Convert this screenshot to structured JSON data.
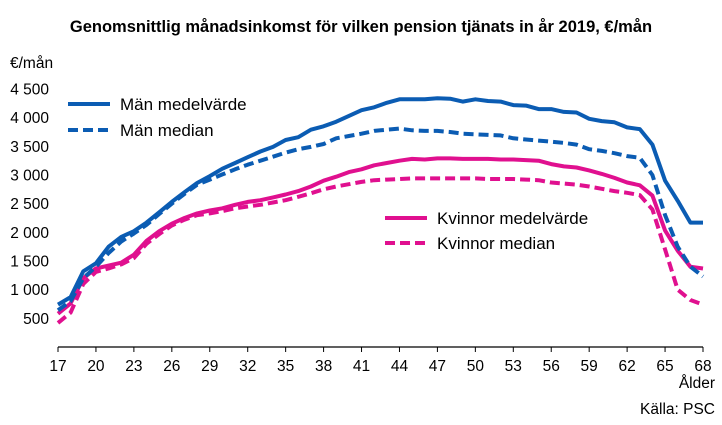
{
  "chart_data": {
    "type": "line",
    "title": "Genomsnittlig månadsinkomst för vilken pension tjänats in år 2019, €/mån",
    "ylabel": "€/mån",
    "xlabel": "Ålder",
    "source": "Källa: PSC",
    "ylim": [
      0,
      4500
    ],
    "xlim": [
      17,
      68
    ],
    "y_ticks": [
      500,
      1000,
      1500,
      2000,
      2500,
      3000,
      3500,
      4000,
      4500
    ],
    "y_tick_labels": [
      "500",
      "1 000",
      "1 500",
      "2 000",
      "2 500",
      "3 000",
      "3 500",
      "4 000",
      "4 500"
    ],
    "x_ticks": [
      17,
      20,
      23,
      26,
      29,
      32,
      35,
      38,
      41,
      44,
      47,
      50,
      53,
      56,
      59,
      62,
      65,
      68
    ],
    "x_tick_labels": [
      "17",
      "20",
      "23",
      "26",
      "29",
      "32",
      "35",
      "38",
      "41",
      "44",
      "47",
      "50",
      "53",
      "56",
      "59",
      "62",
      "65",
      "68"
    ],
    "grid": false,
    "legend_upper": "top-left",
    "legend_lower": "right",
    "colors": {
      "men": "#0b5cb3",
      "women": "#e0108f"
    },
    "x": [
      17,
      18,
      19,
      20,
      21,
      22,
      23,
      24,
      25,
      26,
      27,
      28,
      29,
      30,
      31,
      32,
      33,
      34,
      35,
      36,
      37,
      38,
      39,
      40,
      41,
      42,
      43,
      44,
      45,
      46,
      47,
      48,
      49,
      50,
      51,
      52,
      53,
      54,
      55,
      56,
      57,
      58,
      59,
      60,
      61,
      62,
      63,
      64,
      65,
      66,
      67,
      68
    ],
    "series": [
      {
        "name": "Män medelvärde",
        "color": "#0b5cb3",
        "dash": false,
        "values": [
          740,
          870,
          1320,
          1460,
          1750,
          1920,
          2020,
          2170,
          2350,
          2530,
          2700,
          2860,
          2980,
          3110,
          3210,
          3310,
          3410,
          3490,
          3610,
          3660,
          3790,
          3850,
          3930,
          4030,
          4130,
          4180,
          4260,
          4320,
          4320,
          4320,
          4340,
          4330,
          4280,
          4320,
          4290,
          4280,
          4220,
          4210,
          4150,
          4150,
          4100,
          4090,
          3980,
          3940,
          3920,
          3830,
          3800,
          3530,
          2900,
          2550,
          2170,
          2170
        ]
      },
      {
        "name": "Män median",
        "color": "#0b5cb3",
        "dash": true,
        "values": [
          640,
          800,
          1200,
          1400,
          1640,
          1840,
          1980,
          2130,
          2320,
          2500,
          2670,
          2830,
          2920,
          3010,
          3100,
          3180,
          3250,
          3320,
          3390,
          3450,
          3490,
          3540,
          3640,
          3680,
          3720,
          3770,
          3790,
          3810,
          3780,
          3770,
          3770,
          3750,
          3720,
          3710,
          3700,
          3690,
          3640,
          3620,
          3600,
          3580,
          3560,
          3530,
          3450,
          3420,
          3380,
          3330,
          3300,
          3000,
          2300,
          1750,
          1400,
          1230
        ]
      },
      {
        "name": "Kvinnor medelvärde",
        "color": "#e0108f",
        "dash": false,
        "values": [
          580,
          760,
          1200,
          1370,
          1420,
          1470,
          1610,
          1850,
          2020,
          2150,
          2250,
          2330,
          2380,
          2420,
          2480,
          2530,
          2560,
          2610,
          2660,
          2720,
          2800,
          2900,
          2970,
          3050,
          3100,
          3170,
          3210,
          3250,
          3280,
          3270,
          3290,
          3290,
          3280,
          3280,
          3280,
          3270,
          3270,
          3260,
          3250,
          3190,
          3150,
          3130,
          3080,
          3020,
          2950,
          2870,
          2820,
          2640,
          2030,
          1680,
          1400,
          1370
        ]
      },
      {
        "name": "Kvinnor median",
        "color": "#e0108f",
        "dash": true,
        "values": [
          420,
          600,
          1100,
          1310,
          1370,
          1440,
          1550,
          1800,
          1970,
          2120,
          2220,
          2300,
          2330,
          2370,
          2420,
          2450,
          2480,
          2520,
          2560,
          2620,
          2680,
          2750,
          2800,
          2840,
          2880,
          2910,
          2920,
          2930,
          2940,
          2940,
          2940,
          2940,
          2940,
          2940,
          2930,
          2930,
          2930,
          2920,
          2910,
          2870,
          2850,
          2830,
          2800,
          2760,
          2720,
          2690,
          2650,
          2400,
          1700,
          1000,
          820,
          740
        ]
      }
    ]
  }
}
